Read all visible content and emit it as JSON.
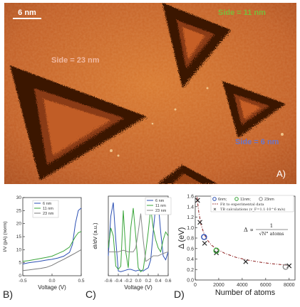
{
  "panel_a": {
    "scale_bar": "6 nm",
    "side_23": "Side = 23 nm",
    "side_11": "Side = 11 nm",
    "side_6": "Side = 6 nm",
    "panel_label": "A)",
    "colors": {
      "background": "#c8662a",
      "edge": "#2a0f04",
      "label_23": "#f0b8a0",
      "label_11": "#7dbb3a",
      "label_6": "#6b74c6"
    }
  },
  "panel_labels": {
    "b": "B)",
    "c": "C)",
    "d": "D)"
  },
  "chart_data": [
    {
      "id": "b",
      "type": "line",
      "xlabel": "Voltage (V)",
      "ylabel": "I/V (pA) (norm)",
      "xlim": [
        -0.5,
        0.5
      ],
      "ylim": [
        0,
        30
      ],
      "xticks": [
        "-0.5",
        "0.0",
        "0.5"
      ],
      "yticks": [
        "0",
        "5",
        "10",
        "15",
        "20",
        "25",
        "30"
      ],
      "legend_position": "top-left",
      "series": [
        {
          "name": "6 nm",
          "color": "#2b4fb3",
          "x": [
            -0.5,
            -0.4,
            -0.3,
            -0.2,
            -0.1,
            0,
            0.1,
            0.2,
            0.3,
            0.35,
            0.4,
            0.45,
            0.5
          ],
          "y": [
            4.5,
            5,
            5.3,
            5.6,
            6,
            6.3,
            6.8,
            7.5,
            9,
            12,
            20,
            25,
            26
          ]
        },
        {
          "name": "11 nm",
          "color": "#3aa53a",
          "x": [
            -0.5,
            -0.4,
            -0.3,
            -0.2,
            -0.1,
            0,
            0.1,
            0.2,
            0.3,
            0.35,
            0.4,
            0.45,
            0.5
          ],
          "y": [
            5.5,
            5.8,
            6.2,
            6.6,
            7,
            7.5,
            8.5,
            9.5,
            11,
            13,
            15,
            16.5,
            17
          ]
        },
        {
          "name": "23 nm",
          "color": "#7a7a7a",
          "x": [
            -0.5,
            -0.4,
            -0.3,
            -0.2,
            -0.1,
            0,
            0.1,
            0.2,
            0.3,
            0.4,
            0.5
          ],
          "y": [
            2,
            2.2,
            2.5,
            2.8,
            3.2,
            4,
            5.2,
            6.3,
            7.5,
            8.7,
            10
          ]
        }
      ]
    },
    {
      "id": "c",
      "type": "line",
      "xlabel": "Voltage (V)",
      "ylabel": "dI/dV (a.u.)",
      "xlim": [
        -0.6,
        0.6
      ],
      "ylim": [
        0,
        1
      ],
      "xticks": [
        "-0.6",
        "-0.4",
        "-0.2",
        "0.0",
        "0.2",
        "0.4",
        "0.6"
      ],
      "legend_position": "top-right",
      "series": [
        {
          "name": "6 nm",
          "color": "#2b4fb3",
          "x": [
            -0.6,
            -0.55,
            -0.5,
            -0.45,
            -0.4,
            -0.35,
            -0.3,
            -0.25,
            -0.2,
            -0.15,
            -0.1,
            -0.05,
            0,
            0.05,
            0.1,
            0.15,
            0.2,
            0.25,
            0.3,
            0.35,
            0.4,
            0.45,
            0.5,
            0.55,
            0.6
          ],
          "y": [
            0.25,
            0.75,
            0.92,
            0.45,
            0.06,
            0.05,
            0.06,
            0.07,
            0.08,
            0.08,
            0.07,
            0.06,
            0.07,
            0.07,
            0.06,
            0.08,
            0.1,
            0.2,
            0.55,
            0.88,
            0.92,
            0.55,
            0.25,
            0.2,
            0.3
          ]
        },
        {
          "name": "11 nm",
          "color": "#3aa53a",
          "x": [
            -0.6,
            -0.55,
            -0.5,
            -0.45,
            -0.4,
            -0.35,
            -0.3,
            -0.25,
            -0.2,
            -0.15,
            -0.1,
            -0.05,
            0,
            0.05,
            0.1,
            0.15,
            0.2,
            0.25,
            0.3,
            0.35,
            0.4,
            0.45,
            0.5,
            0.55,
            0.6
          ],
          "y": [
            0.35,
            0.6,
            0.5,
            0.12,
            0.08,
            0.12,
            0.82,
            0.3,
            0.1,
            0.6,
            0.85,
            0.5,
            0.1,
            0.05,
            0.08,
            0.3,
            0.55,
            0.85,
            0.6,
            0.45,
            0.35,
            0.3,
            0.45,
            0.55,
            0.5
          ]
        },
        {
          "name": "23 nm",
          "color": "#8a8a8a",
          "x": [
            -0.6,
            -0.5,
            -0.4,
            -0.3,
            -0.2,
            -0.1,
            -0.05,
            0,
            0.05,
            0.1,
            0.15,
            0.2,
            0.3,
            0.4,
            0.5,
            0.6
          ],
          "y": [
            0.3,
            0.3,
            0.3,
            0.32,
            0.3,
            0.3,
            0.35,
            0.55,
            0.78,
            0.45,
            0.18,
            0.2,
            0.25,
            0.25,
            0.28,
            0.3
          ]
        }
      ]
    },
    {
      "id": "d",
      "type": "scatter",
      "xlabel": "Number of atoms",
      "ylabel": "Δ (eV)",
      "xlim": [
        0,
        8500
      ],
      "ylim": [
        0,
        1.6
      ],
      "xticks": [
        "0",
        "2000",
        "4000",
        "6000",
        "8000"
      ],
      "yticks": [
        "0.0",
        "0.2",
        "0.4",
        "0.6",
        "0.8",
        "1.0",
        "1.2",
        "1.4",
        "1.6"
      ],
      "legend_position": "top-right",
      "legend": [
        "6nm;",
        "11nm;",
        "23nm",
        "Fit to experimental data",
        "TB calculations (v_F=1.1·10^6 m/s)"
      ],
      "formula_lhs": "Δ ∝",
      "formula_num": "1",
      "formula_den": "√N° atoms",
      "series": [
        {
          "name": "6nm;",
          "marker": "open-circle",
          "color": "#2b4fb3",
          "x": [
            750
          ],
          "y": [
            0.82
          ]
        },
        {
          "name": "11nm;",
          "marker": "open-circle",
          "color": "#3aa53a",
          "x": [
            1800
          ],
          "y": [
            0.56
          ]
        },
        {
          "name": "23nm",
          "marker": "open-circle",
          "color": "#8a8a8a",
          "x": [
            7700
          ],
          "y": [
            0.25
          ]
        },
        {
          "name": "Fit to experimental data",
          "marker": "dash-dot",
          "color": "#8b1a1a",
          "x": [
            150,
            300,
            500,
            750,
            1000,
            1400,
            1800,
            2500,
            3500,
            4500,
            5500,
            6500,
            7500,
            8000
          ],
          "y": [
            1.58,
            1.3,
            1.05,
            0.88,
            0.77,
            0.66,
            0.6,
            0.51,
            0.43,
            0.38,
            0.34,
            0.31,
            0.29,
            0.28
          ]
        },
        {
          "name": "TB calculations (v_F=1.1·10^6 m/s)",
          "marker": "x",
          "color": "#222222",
          "x": [
            200,
            400,
            800,
            1800,
            4300,
            8000
          ],
          "y": [
            1.52,
            1.1,
            0.7,
            0.52,
            0.35,
            0.27
          ]
        }
      ]
    }
  ]
}
